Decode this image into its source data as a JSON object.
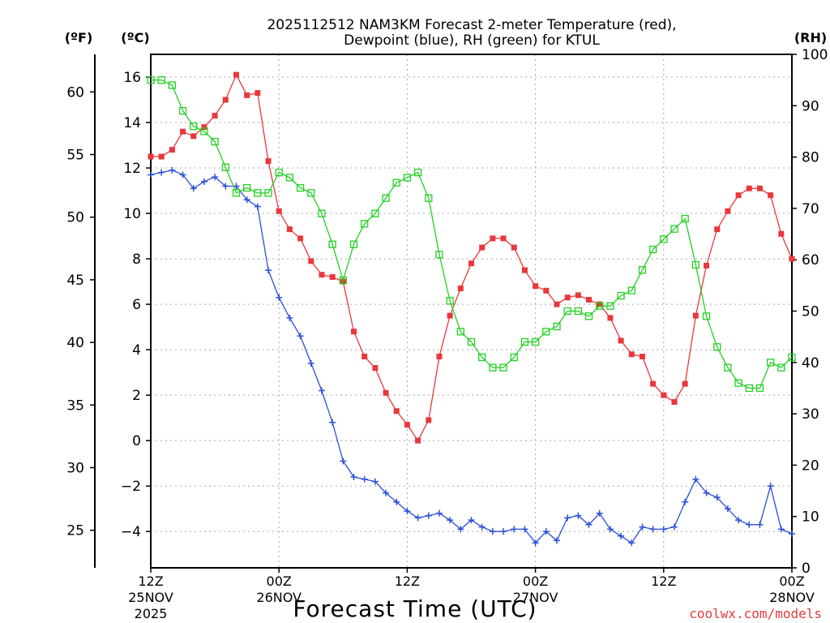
{
  "chart_data": {
    "type": "line",
    "title_line1": "2025112512 NAM3KM Forecast 2-meter Temperature (red),",
    "title_line2": "Dewpoint (blue), RH (green) for KTUL",
    "xlabel": "Forecast Time (UTC)",
    "unit_left_outer": "(ºF)",
    "unit_left_inner": "(ºC)",
    "unit_right": "(RH)",
    "credit": "coolwx.com/models",
    "x_range_hours": [
      0,
      60
    ],
    "celsius_range": [
      -5.6,
      17.0
    ],
    "fahrenheit_range": [
      22.0,
      63.0
    ],
    "rh_range": [
      0,
      100
    ],
    "celsius_ticks": [
      "16",
      "14",
      "12",
      "10",
      "8",
      "6",
      "4",
      "2",
      "0",
      "−2",
      "−4"
    ],
    "celsius_tick_values": [
      16,
      14,
      12,
      10,
      8,
      6,
      4,
      2,
      0,
      -2,
      -4
    ],
    "fahrenheit_ticks": [
      "60",
      "55",
      "50",
      "45",
      "40",
      "35",
      "30",
      "25"
    ],
    "fahrenheit_tick_values": [
      60,
      55,
      50,
      45,
      40,
      35,
      30,
      25
    ],
    "rh_ticks": [
      "100",
      "90",
      "80",
      "70",
      "60",
      "50",
      "40",
      "30",
      "20",
      "10",
      "0"
    ],
    "rh_tick_values": [
      100,
      90,
      80,
      70,
      60,
      50,
      40,
      30,
      20,
      10,
      0
    ],
    "x_ticks": [
      {
        "hour": 0,
        "line1": "12Z",
        "line2": "25NOV",
        "line3": "2025"
      },
      {
        "hour": 12,
        "line1": "00Z",
        "line2": "26NOV",
        "line3": ""
      },
      {
        "hour": 24,
        "line1": "12Z",
        "line2": "",
        "line3": ""
      },
      {
        "hour": 36,
        "line1": "00Z",
        "line2": "27NOV",
        "line3": ""
      },
      {
        "hour": 48,
        "line1": "12Z",
        "line2": "",
        "line3": ""
      },
      {
        "hour": 60,
        "line1": "00Z",
        "line2": "28NOV",
        "line3": ""
      }
    ],
    "series": [
      {
        "name": "Temperature",
        "color": "#e8383c",
        "marker": "filled-square",
        "axis": "celsius",
        "values": [
          12.5,
          12.5,
          12.8,
          13.6,
          13.4,
          13.8,
          14.3,
          15.0,
          16.1,
          15.2,
          15.3,
          12.3,
          10.1,
          9.3,
          8.9,
          7.9,
          7.3,
          7.2,
          7.0,
          4.8,
          3.7,
          3.2,
          2.1,
          1.3,
          0.7,
          0.0,
          0.9,
          3.7,
          5.5,
          6.7,
          7.8,
          8.5,
          8.9,
          8.9,
          8.5,
          7.5,
          6.8,
          6.6,
          6.0,
          6.3,
          6.4,
          6.2,
          6.0,
          5.4,
          4.4,
          3.8,
          3.7,
          2.5,
          2.0,
          1.7,
          2.5,
          5.5,
          7.7,
          9.3,
          10.1,
          10.8,
          11.1,
          11.1,
          10.8,
          9.1,
          8.0
        ]
      },
      {
        "name": "Dewpoint",
        "color": "#2b4fd8",
        "marker": "plus",
        "axis": "celsius",
        "values": [
          11.7,
          11.8,
          11.9,
          11.7,
          11.1,
          11.4,
          11.6,
          11.2,
          11.2,
          10.6,
          10.3,
          7.5,
          6.3,
          5.4,
          4.6,
          3.4,
          2.2,
          0.8,
          -0.9,
          -1.6,
          -1.7,
          -1.8,
          -2.3,
          -2.7,
          -3.1,
          -3.4,
          -3.3,
          -3.2,
          -3.5,
          -3.9,
          -3.5,
          -3.8,
          -4.0,
          -4.0,
          -3.9,
          -3.9,
          -4.5,
          -4.0,
          -4.4,
          -3.4,
          -3.3,
          -3.7,
          -3.2,
          -3.9,
          -4.2,
          -4.5,
          -3.8,
          -3.9,
          -3.9,
          -3.8,
          -2.7,
          -1.7,
          -2.3,
          -2.5,
          -3.0,
          -3.5,
          -3.7,
          -3.7,
          -2.0,
          -3.9,
          -4.1
        ]
      },
      {
        "name": "RH",
        "color": "#22d022",
        "marker": "open-square",
        "axis": "rh",
        "values": [
          95,
          95,
          94,
          89,
          86,
          85,
          83,
          78,
          73,
          74,
          73,
          73,
          77,
          76,
          74,
          73,
          69,
          63,
          56,
          63,
          67,
          69,
          72,
          75,
          76,
          77,
          72,
          61,
          52,
          46,
          44,
          41,
          39,
          39,
          41,
          44,
          44,
          46,
          47,
          50,
          50,
          49,
          51,
          51,
          53,
          54,
          58,
          62,
          64,
          66,
          68,
          59,
          49,
          43,
          39,
          36,
          35,
          35,
          40,
          39,
          41
        ]
      }
    ]
  }
}
